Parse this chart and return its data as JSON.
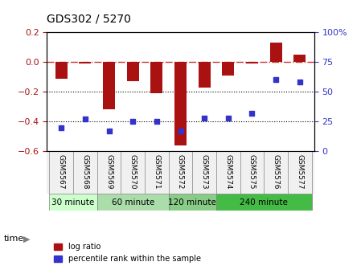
{
  "title": "GDS302 / 5270",
  "samples": [
    "GSM5567",
    "GSM5568",
    "GSM5569",
    "GSM5570",
    "GSM5571",
    "GSM5572",
    "GSM5573",
    "GSM5574",
    "GSM5575",
    "GSM5576",
    "GSM5577"
  ],
  "log_ratio": [
    -0.11,
    -0.01,
    -0.32,
    -0.13,
    -0.21,
    -0.56,
    -0.17,
    -0.09,
    -0.01,
    0.13,
    0.05
  ],
  "percentile": [
    20,
    27,
    17,
    25,
    25,
    17,
    28,
    28,
    32,
    60,
    58
  ],
  "time_groups": [
    {
      "label": "30 minute",
      "start": 0,
      "end": 2,
      "color": "#ccffcc"
    },
    {
      "label": "60 minute",
      "start": 2,
      "end": 5,
      "color": "#aaddaa"
    },
    {
      "label": "120 minute",
      "start": 5,
      "end": 7,
      "color": "#88cc88"
    },
    {
      "label": "240 minute",
      "start": 7,
      "end": 11,
      "color": "#44bb44"
    }
  ],
  "group_colors": [
    "#ccffcc",
    "#aaddaa",
    "#88cc88",
    "#44bb44"
  ],
  "bar_color": "#aa1111",
  "dot_color": "#3333cc",
  "zero_line_color": "#cc3333",
  "ylim_left": [
    -0.6,
    0.2
  ],
  "ylim_right": [
    0,
    100
  ],
  "right_yticks": [
    0,
    25,
    50,
    75,
    100
  ],
  "right_yticklabels": [
    "0",
    "25",
    "50",
    "75",
    "100%"
  ],
  "left_yticks": [
    -0.6,
    -0.4,
    -0.2,
    0.0,
    0.2
  ],
  "hlines": [
    -0.4,
    -0.2
  ],
  "legend_log_ratio": "log ratio",
  "legend_percentile": "percentile rank within the sample",
  "time_label": "time",
  "background_color": "#f0f0f0"
}
